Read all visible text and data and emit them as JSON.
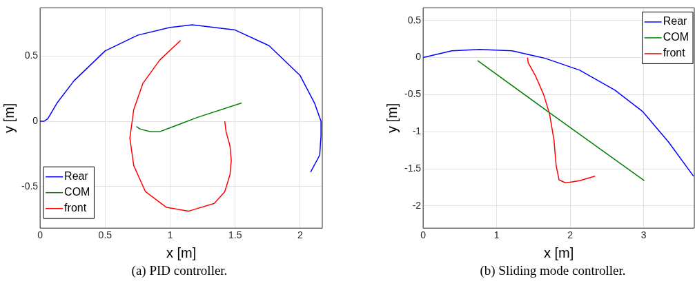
{
  "chart_data": [
    {
      "type": "line",
      "xlabel": "x [m]",
      "ylabel": "y [m]",
      "annotations": [
        "(a) PID controller."
      ],
      "xlim": [
        0,
        2.17
      ],
      "ylim": [
        -0.82,
        0.87
      ],
      "xticks": [
        0,
        0.5,
        1,
        1.5,
        2
      ],
      "yticks": [
        -0.5,
        0,
        0.5
      ],
      "grid": true,
      "legend": "bottom left",
      "series": [
        {
          "name": "Rear",
          "color": "#0000ff",
          "x": [
            0,
            0.03,
            0.06,
            0.13,
            0.26,
            0.5,
            0.75,
            1.0,
            1.17,
            1.5,
            1.76,
            2.0,
            2.11,
            2.16,
            2.16,
            2.15,
            2.08
          ],
          "values": [
            0,
            0,
            0.02,
            0.14,
            0.31,
            0.54,
            0.66,
            0.72,
            0.74,
            0.7,
            0.58,
            0.35,
            0.14,
            0,
            -0.11,
            -0.26,
            -0.39
          ]
        },
        {
          "name": "COM",
          "color": "#008000",
          "x": [
            0.74,
            0.77,
            0.85,
            0.92,
            1.21,
            1.55
          ],
          "values": [
            -0.04,
            -0.06,
            -0.08,
            -0.08,
            0.03,
            0.14
          ]
        },
        {
          "name": "front",
          "color": "#ff0000",
          "x": [
            1.42,
            1.43,
            1.46,
            1.47,
            1.46,
            1.42,
            1.34,
            1.14,
            0.97,
            0.81,
            0.72,
            0.69,
            0.72,
            0.79,
            0.92,
            1.08
          ],
          "values": [
            0,
            -0.08,
            -0.19,
            -0.3,
            -0.41,
            -0.54,
            -0.63,
            -0.69,
            -0.66,
            -0.54,
            -0.34,
            -0.13,
            0.09,
            0.29,
            0.47,
            0.62
          ]
        }
      ]
    },
    {
      "type": "line",
      "xlabel": "x [m]",
      "ylabel": "y [m]",
      "annotations": [
        "(b) Sliding mode controller."
      ],
      "xlim": [
        0,
        3.69
      ],
      "ylim": [
        -2.3,
        0.67
      ],
      "xticks": [
        0,
        1,
        2,
        3
      ],
      "yticks": [
        -2,
        -1.5,
        -1,
        -0.5,
        0,
        0.5
      ],
      "grid": true,
      "legend": "top right",
      "series": [
        {
          "name": "Rear",
          "color": "#0000ff",
          "x": [
            0,
            0.39,
            0.77,
            1.21,
            1.66,
            2.13,
            2.61,
            2.99,
            3.34,
            3.68
          ],
          "values": [
            0,
            0.09,
            0.11,
            0.09,
            -0.01,
            -0.17,
            -0.44,
            -0.73,
            -1.14,
            -1.6
          ]
        },
        {
          "name": "COM",
          "color": "#008000",
          "x": [
            0.74,
            1.7,
            3.01
          ],
          "values": [
            -0.04,
            -0.73,
            -1.66
          ]
        },
        {
          "name": "front",
          "color": "#ff0000",
          "x": [
            1.42,
            1.43,
            1.53,
            1.64,
            1.72,
            1.78,
            1.81,
            1.85,
            1.94,
            2.13,
            2.34
          ],
          "values": [
            0,
            -0.07,
            -0.25,
            -0.5,
            -0.76,
            -1.11,
            -1.46,
            -1.65,
            -1.69,
            -1.66,
            -1.6
          ]
        }
      ]
    }
  ]
}
